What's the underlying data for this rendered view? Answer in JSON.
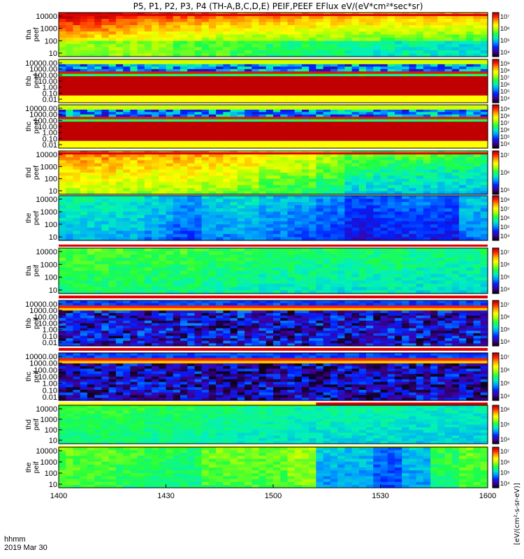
{
  "chart_data": {
    "type": "heatmap",
    "title": "P5, P1, P2, P3, P4 (TH-A,B,C,D,E) PEIF,PEEF EFlux eV/(eV*cm²*sec*sr)",
    "x_axis": {
      "ticks": [
        "1400",
        "1430",
        "1500",
        "1530",
        "1600"
      ],
      "corner_label": "hhmm",
      "date_label": "2019 Mar 30"
    },
    "colorbar_units_label": "[eV/(cm²-s-sr-eV)]",
    "colors": {
      "red": "#e00000",
      "yellow": "#ffff00",
      "white": "#ffffff",
      "low": "#000000",
      "high": "#cc0000"
    },
    "panels": [
      {
        "probe": "tha",
        "product": "peef",
        "y_ticks": [
          "10000",
          "1000",
          "100",
          "10"
        ],
        "cb_ticks": [
          "10⁷",
          "10⁶",
          "10⁵",
          "10⁴"
        ],
        "base": [
          0.8,
          0.78,
          0.75,
          0.72,
          0.7,
          0.68,
          0.66,
          0.66,
          0.65,
          0.64,
          0.63,
          0.62,
          0.62,
          0.61,
          0.6
        ],
        "grad": 0.4,
        "noise": 0.05,
        "lowband": [
          0.45,
          0.45,
          0.45,
          0.45,
          0.4,
          0.4,
          0.38,
          0.35,
          0.35,
          0.32,
          0.3,
          0.28,
          0.28,
          0.26,
          0.25
        ],
        "redrow": true,
        "top_strip": "",
        "bottom_strip": ""
      },
      {
        "probe": "thb",
        "product": "peef",
        "y_ticks": [
          "10000.00",
          "1000.00",
          "100.00",
          "10.00",
          "1.00",
          "0.10",
          "0.01"
        ],
        "cb_ticks": [
          "10⁹",
          "10⁸",
          "10⁷",
          "10⁶",
          "10⁵",
          "10⁴"
        ],
        "base": [
          0.3,
          0.3,
          0.3,
          0.3,
          0.3,
          0.3,
          0.3,
          0.3,
          0.3,
          0.3,
          0.3,
          0.3,
          0.3,
          0.3,
          0.3
        ],
        "grad": 0.0,
        "noise": 0.12,
        "bands": "sat",
        "redrow": false,
        "top_strip": "",
        "bottom_strip": ""
      },
      {
        "probe": "thc",
        "product": "peef",
        "y_ticks": [
          "10000.00",
          "1000.00",
          "100.00",
          "10.00",
          "1.00",
          "0.10",
          "0.01"
        ],
        "cb_ticks": [
          "10⁹",
          "10⁸",
          "10⁷",
          "10⁶",
          "10⁵",
          "10⁴"
        ],
        "base": [
          0.3,
          0.3,
          0.3,
          0.3,
          0.3,
          0.3,
          0.3,
          0.3,
          0.3,
          0.3,
          0.3,
          0.3,
          0.3,
          0.3,
          0.3
        ],
        "grad": 0.0,
        "noise": 0.12,
        "bands": "sat",
        "redrow": false,
        "top_strip": "",
        "bottom_strip": ""
      },
      {
        "probe": "thd",
        "product": "peef",
        "y_ticks": [
          "10000",
          "1000",
          "100",
          "10"
        ],
        "cb_ticks": [
          "10⁷",
          "10⁶",
          "10⁵"
        ],
        "base": [
          0.74,
          0.74,
          0.72,
          0.72,
          0.72,
          0.7,
          0.68,
          0.62,
          0.6,
          0.56,
          0.48,
          0.46,
          0.46,
          0.44,
          0.44
        ],
        "grad": 0.2,
        "noise": 0.06,
        "redrow": true,
        "top_strip": "",
        "bottom_strip": ""
      },
      {
        "probe": "the",
        "product": "peef",
        "y_ticks": [
          "10000",
          "1000",
          "100",
          "10"
        ],
        "cb_ticks": [
          "10⁸",
          "10⁷",
          "10⁶",
          "10⁵",
          "10⁴"
        ],
        "base": [
          0.4,
          0.4,
          0.38,
          0.34,
          0.28,
          0.34,
          0.36,
          0.32,
          0.3,
          0.26,
          0.2,
          0.22,
          0.24,
          0.22,
          0.32
        ],
        "grad": 0.1,
        "noise": 0.05,
        "redrow": false,
        "top_strip": "",
        "bottom_strip": "white"
      },
      {
        "probe": "tha",
        "product": "peif",
        "y_ticks": [
          "10000",
          "1000",
          "100",
          "10"
        ],
        "cb_ticks": [
          "10⁷",
          "10⁶",
          "10⁵",
          "10⁴"
        ],
        "base": [
          0.52,
          0.52,
          0.5,
          0.5,
          0.5,
          0.48,
          0.48,
          0.46,
          0.46,
          0.45,
          0.45,
          0.45,
          0.44,
          0.44,
          0.44
        ],
        "grad": 0.08,
        "noise": 0.05,
        "redrow": false,
        "top_strip": "red",
        "bottom_strip": "red"
      },
      {
        "probe": "thb",
        "product": "peif",
        "y_ticks": [
          "10000.00",
          "1000.00",
          "100.00",
          "10.00",
          "1.00",
          "0.10",
          "0.01"
        ],
        "cb_ticks": [
          "10⁷",
          "10⁶",
          "10⁵",
          "10⁴"
        ],
        "base": [
          0.15,
          0.15,
          0.15,
          0.15,
          0.15,
          0.15,
          0.15,
          0.15,
          0.15,
          0.15,
          0.15,
          0.15,
          0.15,
          0.15,
          0.15
        ],
        "grad": 0.0,
        "noise": 0.08,
        "bands": "ion",
        "redrow": false,
        "top_strip": "",
        "bottom_strip": "red"
      },
      {
        "probe": "thc",
        "product": "peif",
        "y_ticks": [
          "10000.00",
          "1000.00",
          "100.00",
          "10.00",
          "1.00",
          "0.10",
          "0.01"
        ],
        "cb_ticks": [
          "10⁷",
          "10⁶",
          "10⁵",
          "10⁴"
        ],
        "base": [
          0.12,
          0.12,
          0.12,
          0.12,
          0.12,
          0.12,
          0.12,
          0.12,
          0.12,
          0.12,
          0.12,
          0.12,
          0.12,
          0.12,
          0.12
        ],
        "grad": 0.0,
        "noise": 0.08,
        "bands": "ion",
        "redrow": false,
        "top_strip": "",
        "bottom_strip": "yellowred"
      },
      {
        "probe": "thd",
        "product": "peif",
        "y_ticks": [
          "10000",
          "1000",
          "100",
          "10"
        ],
        "cb_ticks": [
          "10⁶",
          "10⁵",
          "10⁴"
        ],
        "base": [
          0.5,
          0.5,
          0.5,
          0.48,
          0.48,
          0.46,
          0.44,
          0.44,
          0.42,
          0.42,
          0.42,
          0.42,
          0.4,
          0.4,
          0.4
        ],
        "grad": 0.06,
        "noise": 0.04,
        "redrow": false,
        "top_strip": "",
        "bottom_strip": "yellow"
      },
      {
        "probe": "the",
        "product": "peif",
        "y_ticks": [
          "10000",
          "1000",
          "100",
          "10"
        ],
        "cb_ticks": [
          "10⁷",
          "10⁶",
          "10⁵",
          "10⁴"
        ],
        "base": [
          0.55,
          0.55,
          0.52,
          0.5,
          0.48,
          0.56,
          0.56,
          0.56,
          0.6,
          0.34,
          0.34,
          0.25,
          0.34,
          0.5,
          0.55
        ],
        "grad": 0.05,
        "noise": 0.05,
        "redrow": false,
        "top_strip": "",
        "bottom_strip": ""
      }
    ]
  }
}
